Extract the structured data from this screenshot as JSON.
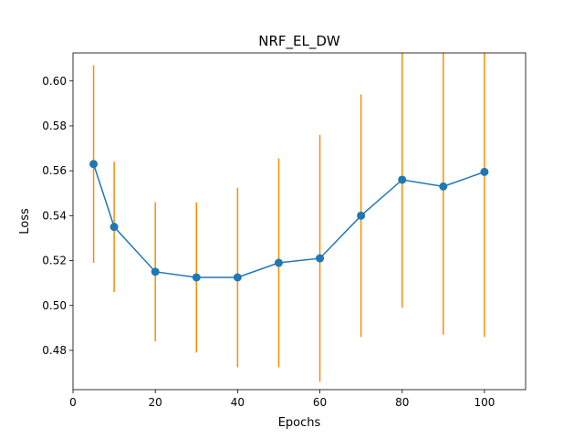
{
  "chart_data": {
    "type": "line",
    "title": "NRF_EL_DW",
    "xlabel": "Epochs",
    "ylabel": "Loss",
    "xlim": [
      0,
      110
    ],
    "ylim": [
      0.4625,
      0.6125
    ],
    "xticks": [
      0,
      20,
      40,
      60,
      80,
      100
    ],
    "yticks": [
      0.48,
      0.5,
      0.52,
      0.54,
      0.56,
      0.58,
      0.6
    ],
    "xtick_labels": [
      "0",
      "20",
      "40",
      "60",
      "80",
      "100"
    ],
    "ytick_labels": [
      "0.48",
      "0.50",
      "0.52",
      "0.54",
      "0.56",
      "0.58",
      "0.60"
    ],
    "grid": false,
    "series": [
      {
        "color": "#1f77b4",
        "errorbar_color": "#ff8c00",
        "marker": "circle",
        "points": [
          {
            "x": 5,
            "y": 0.563,
            "err": 0.044
          },
          {
            "x": 10,
            "y": 0.535,
            "err": 0.029
          },
          {
            "x": 20,
            "y": 0.515,
            "err": 0.031
          },
          {
            "x": 30,
            "y": 0.5125,
            "err": 0.0335
          },
          {
            "x": 40,
            "y": 0.5125,
            "err": 0.04
          },
          {
            "x": 50,
            "y": 0.519,
            "err": 0.0465
          },
          {
            "x": 60,
            "y": 0.521,
            "err": 0.055
          },
          {
            "x": 70,
            "y": 0.54,
            "err": 0.054
          },
          {
            "x": 80,
            "y": 0.556,
            "err": 0.057
          },
          {
            "x": 90,
            "y": 0.553,
            "err": 0.066
          },
          {
            "x": 100,
            "y": 0.5595,
            "err": 0.0735
          }
        ]
      }
    ]
  }
}
